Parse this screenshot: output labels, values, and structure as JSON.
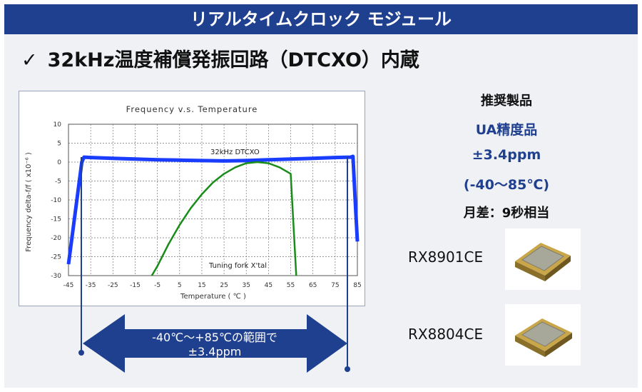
{
  "header": {
    "title": "リアルタイムクロック モジュール"
  },
  "main": {
    "heading_check": "✓",
    "heading": "32kHz温度補償発振回路（DTCXO）内蔵"
  },
  "recommended": {
    "label": "推奨製品",
    "grade": "UA精度品",
    "accuracy": "±3.4ppm",
    "range": "(-40〜85℃)",
    "monthly": "月差：9秒相当"
  },
  "products": [
    {
      "name": "RX8901CE"
    },
    {
      "name": "RX8804CE"
    }
  ],
  "arrow": {
    "line1": "-40℃〜+85℃の範囲で",
    "line2": "±3.4ppm"
  },
  "colors": {
    "header_bg": "#1f3f8f",
    "accent": "#1f3f8f",
    "dtcxo": "#1a3cff",
    "tuning": "#1a8c1a"
  },
  "chart_data": {
    "type": "line",
    "title": "Frequency v.s. Temperature",
    "xlabel": "Temperature ( ℃ )",
    "ylabel": "Frequency delta-f/f ( x10⁻⁶ )",
    "xlim": [
      -45,
      85
    ],
    "ylim": [
      -30,
      10
    ],
    "xticks": [
      -45,
      -35,
      -25,
      -15,
      -5,
      5,
      15,
      25,
      35,
      45,
      55,
      65,
      75,
      85
    ],
    "yticks": [
      10,
      5,
      0,
      -5,
      -10,
      -15,
      -20,
      -25,
      -30
    ],
    "grid": true,
    "series": [
      {
        "name": "32kHz DTCXO",
        "x": [
          -45,
          -39,
          -38,
          -35,
          -25,
          -15,
          -5,
          5,
          15,
          25,
          35,
          45,
          55,
          65,
          75,
          82,
          83,
          84,
          85
        ],
        "y": [
          -27,
          0,
          1.3,
          1.2,
          1.0,
          0.8,
          0.6,
          0.5,
          0.4,
          0.3,
          0.4,
          0.6,
          0.8,
          1.0,
          1.2,
          1.3,
          1.5,
          -10,
          -21
        ]
      },
      {
        "name": "Tuning fork X'tal",
        "x": [
          -7.5,
          -5,
          0,
          5,
          10,
          15,
          20,
          25,
          30,
          35,
          40,
          45,
          50,
          55,
          57.5
        ],
        "y": [
          -30,
          -27.5,
          -21.7,
          -16.6,
          -12.2,
          -8.5,
          -5.4,
          -3.1,
          -1.4,
          -0.3,
          0,
          -0.3,
          -1.4,
          -3.1,
          -30
        ]
      }
    ],
    "annotations": [
      "32kHz DTCXO",
      "Tuning fork X'tal"
    ]
  }
}
